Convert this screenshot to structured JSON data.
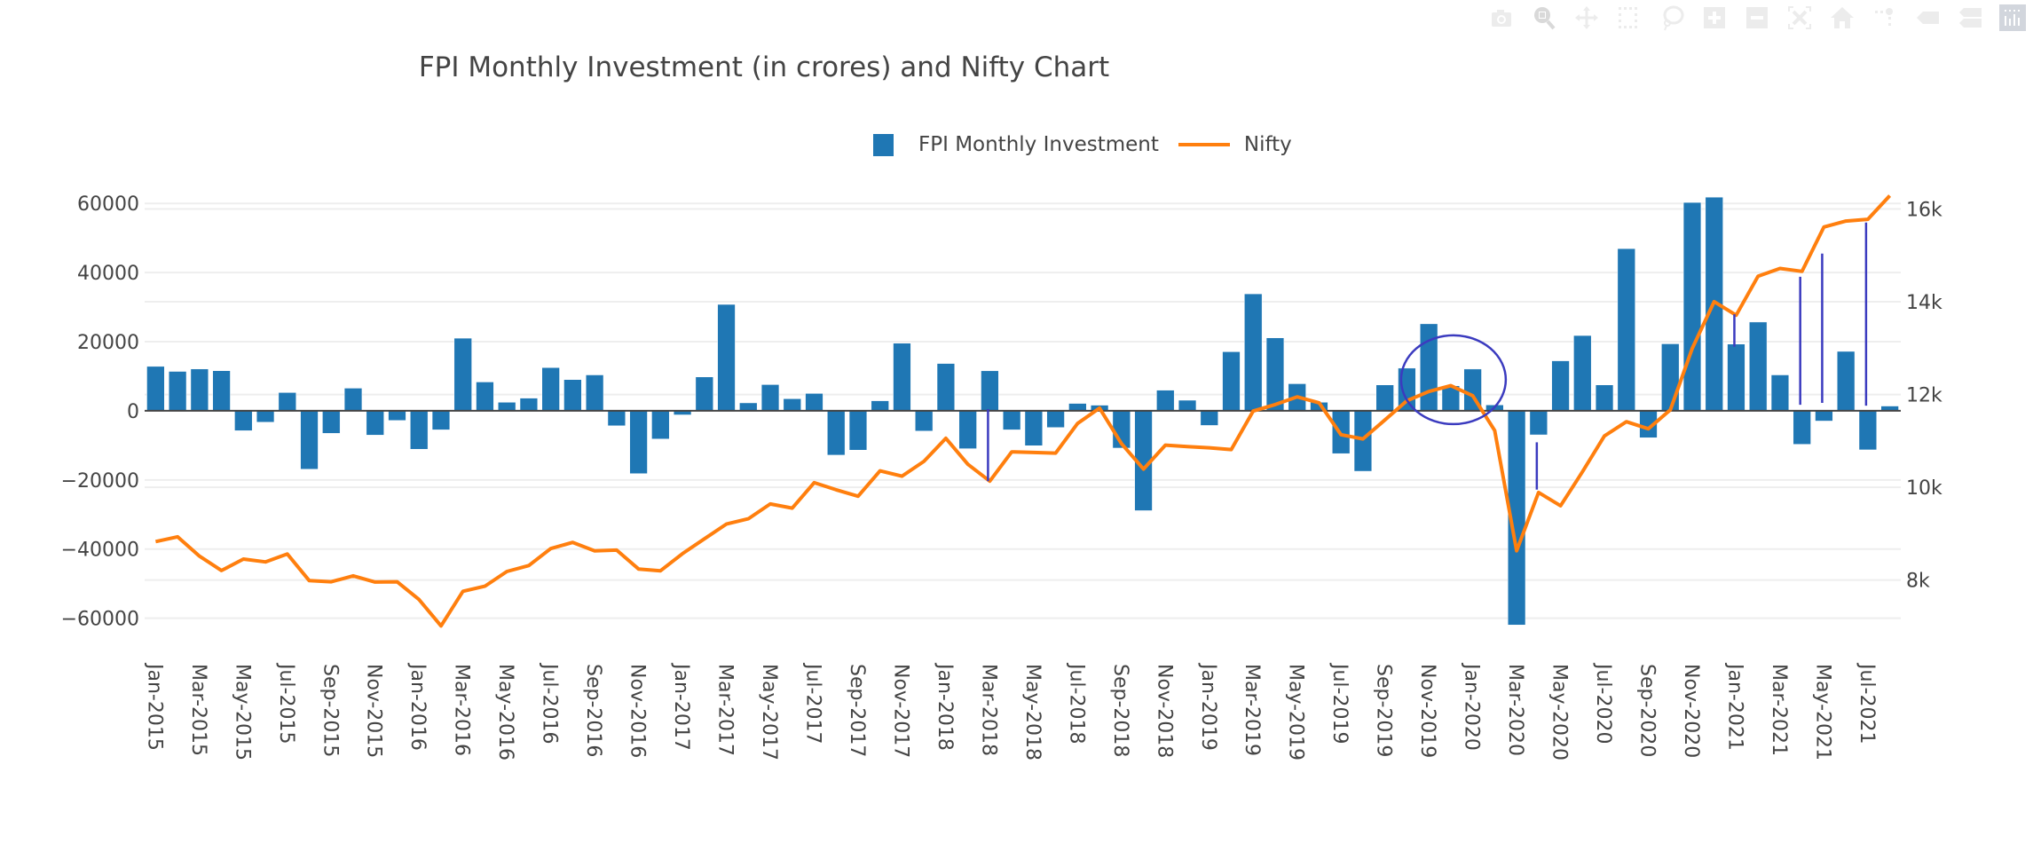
{
  "modebar": {
    "buttons": [
      {
        "name": "download-plot-icon",
        "title": "Download plot as a png"
      },
      {
        "name": "zoom-icon",
        "title": "Zoom"
      },
      {
        "name": "pan-icon",
        "title": "Pan"
      },
      {
        "name": "box-select-icon",
        "title": "Box Select"
      },
      {
        "name": "lasso-select-icon",
        "title": "Lasso Select"
      },
      {
        "name": "zoom-in-icon",
        "title": "Zoom in"
      },
      {
        "name": "zoom-out-icon",
        "title": "Zoom out"
      },
      {
        "name": "autoscale-icon",
        "title": "Autoscale"
      },
      {
        "name": "reset-axes-icon",
        "title": "Reset axes"
      },
      {
        "name": "spike-lines-icon",
        "title": "Toggle Spike Lines"
      },
      {
        "name": "hover-closest-icon",
        "title": "Show closest data on hover"
      },
      {
        "name": "hover-compare-icon",
        "title": "Compare data on hover"
      },
      {
        "name": "plotly-logo-icon",
        "title": "Produced with Plotly"
      }
    ]
  },
  "colors": {
    "bar": "#1f77b4",
    "line": "#ff7f0e",
    "annotation": "#3b3bbf",
    "grid": "#eeeeee",
    "zeroline": "#444444",
    "text": "#444444"
  },
  "chart_data": {
    "type": "bar",
    "title": "FPI Monthly Investment (in crores) and Nifty Chart",
    "xlabel": "",
    "ylabel": "",
    "legend": {
      "position": "top-center",
      "orientation": "horizontal"
    },
    "grid": true,
    "categories": [
      "Jan-2015",
      "Feb-2015",
      "Mar-2015",
      "Apr-2015",
      "May-2015",
      "Jun-2015",
      "Jul-2015",
      "Aug-2015",
      "Sep-2015",
      "Oct-2015",
      "Nov-2015",
      "Dec-2015",
      "Jan-2016",
      "Feb-2016",
      "Mar-2016",
      "Apr-2016",
      "May-2016",
      "Jun-2016",
      "Jul-2016",
      "Aug-2016",
      "Sep-2016",
      "Oct-2016",
      "Nov-2016",
      "Dec-2016",
      "Jan-2017",
      "Feb-2017",
      "Mar-2017",
      "Apr-2017",
      "May-2017",
      "Jun-2017",
      "Jul-2017",
      "Aug-2017",
      "Sep-2017",
      "Oct-2017",
      "Nov-2017",
      "Dec-2017",
      "Jan-2018",
      "Feb-2018",
      "Mar-2018",
      "Apr-2018",
      "May-2018",
      "Jun-2018",
      "Jul-2018",
      "Aug-2018",
      "Sep-2018",
      "Oct-2018",
      "Nov-2018",
      "Dec-2018",
      "Jan-2019",
      "Feb-2019",
      "Mar-2019",
      "Apr-2019",
      "May-2019",
      "Jun-2019",
      "Jul-2019",
      "Aug-2019",
      "Sep-2019",
      "Oct-2019",
      "Nov-2019",
      "Dec-2019",
      "Jan-2020",
      "Feb-2020",
      "Mar-2020",
      "Apr-2020",
      "May-2020",
      "Jun-2020",
      "Jul-2020",
      "Aug-2020",
      "Sep-2020",
      "Oct-2020",
      "Nov-2020",
      "Dec-2020",
      "Jan-2021",
      "Feb-2021",
      "Mar-2021",
      "Apr-2021",
      "May-2021",
      "Jun-2021",
      "Jul-2021",
      "Aug-2021"
    ],
    "x_tick_labels": [
      "Jan-2015",
      "Mar-2015",
      "May-2015",
      "Jul-2015",
      "Sep-2015",
      "Nov-2015",
      "Jan-2016",
      "Mar-2016",
      "May-2016",
      "Jul-2016",
      "Sep-2016",
      "Nov-2016",
      "Jan-2017",
      "Mar-2017",
      "May-2017",
      "Jul-2017",
      "Sep-2017",
      "Nov-2017",
      "Jan-2018",
      "Mar-2018",
      "May-2018",
      "Jul-2018",
      "Sep-2018",
      "Nov-2018",
      "Jan-2019",
      "Mar-2019",
      "May-2019",
      "Jul-2019",
      "Sep-2019",
      "Nov-2019",
      "Jan-2020",
      "Mar-2020",
      "May-2020",
      "Jul-2020",
      "Sep-2020",
      "Nov-2020",
      "Jan-2021",
      "Mar-2021",
      "May-2021",
      "Jul-2021"
    ],
    "series": [
      {
        "name": "FPI Monthly Investment",
        "type": "bar",
        "axis": "y-left",
        "values": [
          12850,
          11400,
          12100,
          11600,
          -5760,
          -3300,
          5280,
          -16900,
          -6530,
          6550,
          -7040,
          -2800,
          -11120,
          -5510,
          21010,
          8340,
          2470,
          3670,
          12500,
          9030,
          10380,
          -4340,
          -18180,
          -8160,
          -1180,
          9800,
          30780,
          2300,
          7580,
          3490,
          5020,
          -12830,
          -11380,
          2900,
          19560,
          -5860,
          13690,
          -10960,
          11580,
          -5510,
          -10100,
          -4840,
          2140,
          1630,
          -10790,
          -28890,
          5970,
          3060,
          -4240,
          17090,
          33840,
          21100,
          7830,
          2470,
          -12390,
          -17490,
          7490,
          12340,
          25170,
          7240,
          12080,
          1700,
          -61970,
          -6960,
          14460,
          21780,
          7490,
          46920,
          -7800,
          19380,
          60280,
          61810,
          19300,
          25680,
          10380,
          -9690,
          -2960,
          17190,
          -11300,
          1380
        ]
      },
      {
        "name": "Nifty",
        "type": "line",
        "axis": "y-right",
        "values": [
          8830,
          8932,
          8516,
          8205,
          8453,
          8390,
          8562,
          7988,
          7962,
          8090,
          7956,
          7962,
          7579,
          7012,
          7758,
          7866,
          8185,
          8313,
          8677,
          8811,
          8631,
          8645,
          8237,
          8199,
          8568,
          8888,
          9206,
          9320,
          9640,
          9550,
          10099,
          9946,
          9807,
          10354,
          10239,
          10559,
          11056,
          10495,
          10132,
          10764,
          10750,
          10737,
          11376,
          11707,
          10941,
          10392,
          10909,
          10878,
          10852,
          10813,
          11644,
          11784,
          11950,
          11822,
          11133,
          11043,
          11453,
          11866,
          12065,
          12191,
          11975,
          11223,
          8631,
          9889,
          9602,
          10335,
          11107,
          11414,
          11261,
          11669,
          12995,
          14004,
          13711,
          14553,
          14718,
          14655,
          15612,
          15740,
          15778,
          16287
        ]
      }
    ],
    "y_left": {
      "ylim": [
        -66000,
        67500
      ],
      "ticks": [
        60000,
        40000,
        20000,
        0,
        -20000,
        -40000,
        -60000
      ],
      "tick_labels": [
        "60000",
        "40000",
        "20000",
        "0",
        "−20000",
        "−40000",
        "−60000"
      ]
    },
    "y_right": {
      "ylim": [
        6730,
        16680
      ],
      "ticks": [
        16000,
        14000,
        12000,
        10000,
        8000
      ],
      "tick_labels": [
        "16k",
        "14k",
        "12k",
        "10k",
        "8k"
      ]
    },
    "annotations": [
      {
        "type": "vline",
        "category": "Mar-2018",
        "from_fpi": 500,
        "to_nifty": 10130
      },
      {
        "type": "ellipse",
        "center_category": "Dec-2019",
        "around": "Oct-2019 to Feb-2020 peak"
      },
      {
        "type": "vline",
        "category": "Apr-2020",
        "from_nifty": 10970,
        "to_nifty": 9950
      },
      {
        "type": "vline",
        "category": "Jan-2021",
        "from_nifty": 13730,
        "to_nifty": 13030
      },
      {
        "type": "vline",
        "category": "Apr-2021",
        "from_nifty": 14540,
        "to_nifty": 11780
      },
      {
        "type": "vline",
        "category": "May-2021",
        "from_nifty": 15040,
        "to_nifty": 11820
      },
      {
        "type": "vline",
        "category": "Jul-2021",
        "from_nifty": 15710,
        "to_nifty": 11760
      }
    ]
  }
}
